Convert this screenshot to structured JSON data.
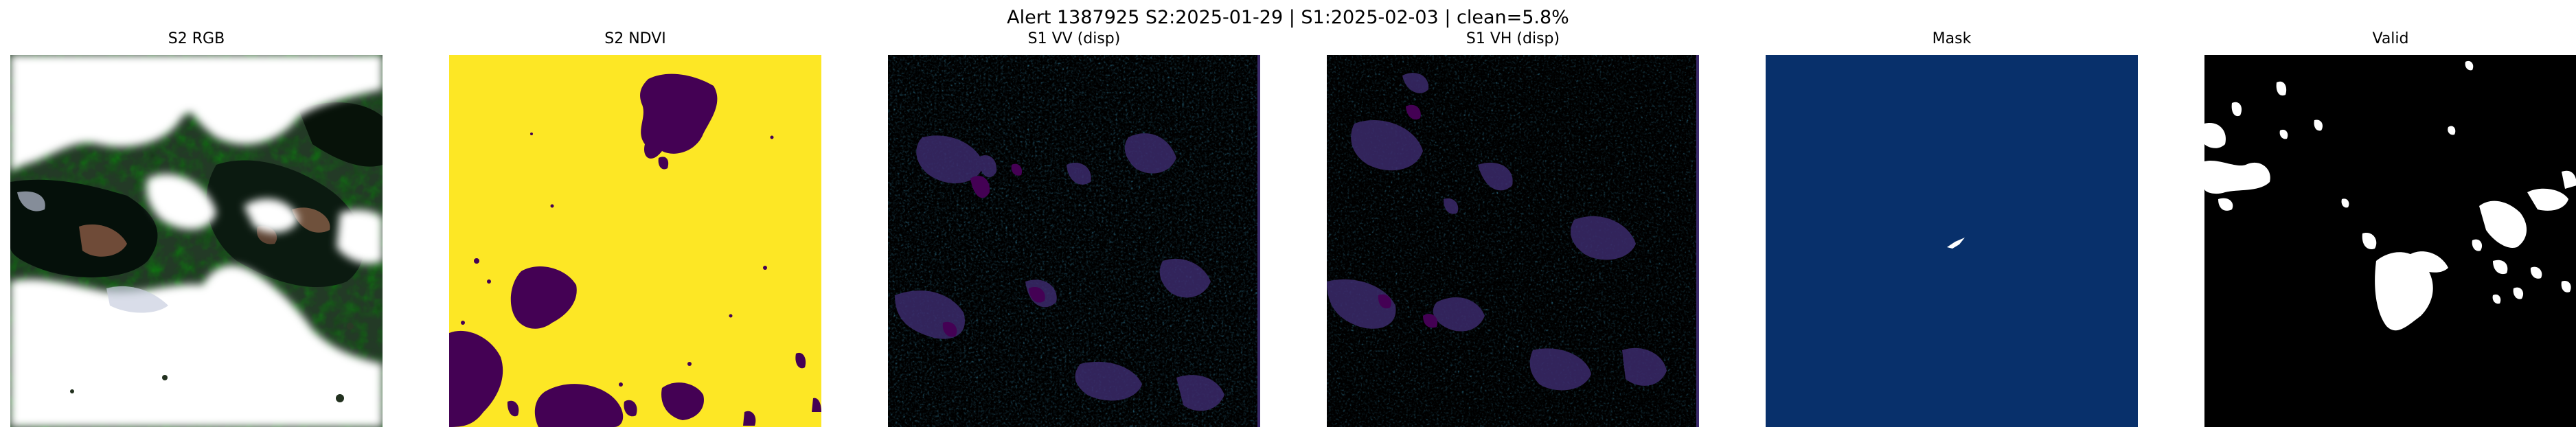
{
  "figure": {
    "suptitle": "Alert 1387925   S2:2025-01-29  |  S1:2025-02-03  |  clean=5.8%"
  },
  "panels": [
    {
      "title": "S2 RGB",
      "content": "satellite-rgb-clouds"
    },
    {
      "title": "S2 NDVI",
      "content": "ndvi-map",
      "colormap": [
        "#440154",
        "#fde725"
      ]
    },
    {
      "title": "S1 VV (disp)",
      "content": "radar-vv",
      "colormap": [
        "#440154",
        "#31688e",
        "#35b779",
        "#fde725"
      ]
    },
    {
      "title": "S1 VH (disp)",
      "content": "radar-vh",
      "colormap": [
        "#440154",
        "#31688e",
        "#35b779",
        "#fde725"
      ]
    },
    {
      "title": "Mask",
      "content": "binary-mask",
      "colormap": [
        "#08306b",
        "#ffffff"
      ]
    },
    {
      "title": "Valid",
      "content": "binary-valid",
      "colormap": [
        "#000000",
        "#ffffff"
      ]
    }
  ]
}
